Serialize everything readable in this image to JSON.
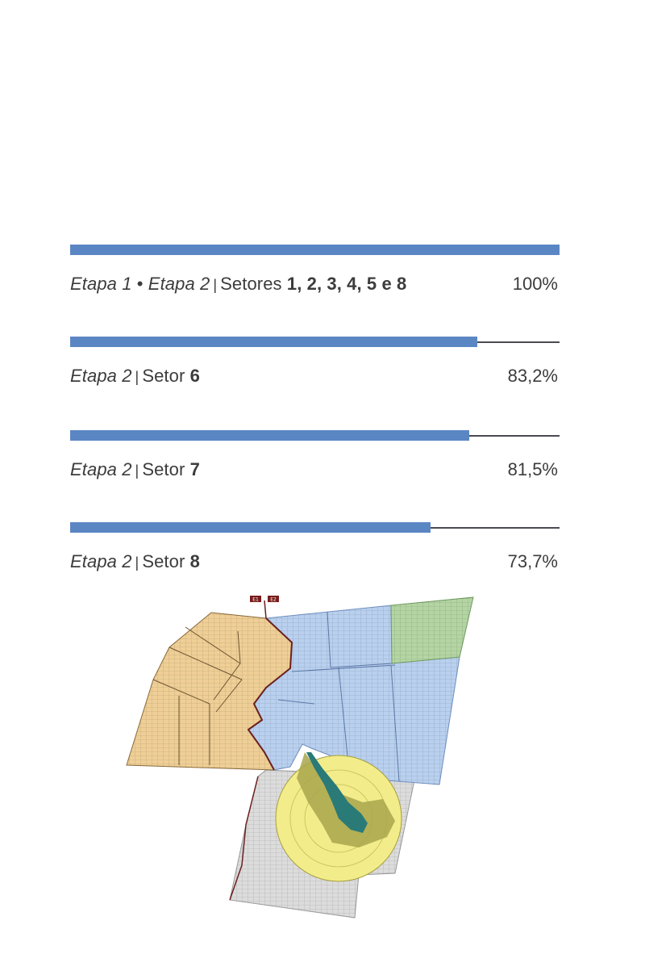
{
  "progress": [
    {
      "stage_a": "Etapa 1",
      "bullet": "•",
      "stage_b": "Etapa 2",
      "separator": "|",
      "sector_prefix": "Setores",
      "sectors": "1, 2, 3, 4, 5 e 8",
      "percent_text": "100%",
      "fraction": 1.0
    },
    {
      "stage_a": "",
      "bullet": "",
      "stage_b": "Etapa 2",
      "separator": "|",
      "sector_prefix": "Setor",
      "sectors": "6",
      "percent_text": "83,2%",
      "fraction": 0.832
    },
    {
      "stage_a": "",
      "bullet": "",
      "stage_b": "Etapa 2",
      "separator": "|",
      "sector_prefix": "Setor",
      "sectors": "7",
      "percent_text": "81,5%",
      "fraction": 0.815
    },
    {
      "stage_a": "",
      "bullet": "",
      "stage_b": "Etapa 2",
      "separator": "|",
      "sector_prefix": "Setor",
      "sectors": "8",
      "percent_text": "73,7%",
      "fraction": 0.737
    }
  ],
  "map": {
    "entrance_labels": [
      "E1",
      "E2"
    ],
    "colors": {
      "orange_zone": "#efcf96",
      "blue_zone": "#b9d0ef",
      "green_zone": "#b4d5a3",
      "yellow_zone": "#f3ec8a",
      "gray_zone": "#dcdcdc",
      "lake": "#2a7a78",
      "olive": "#a8a64c",
      "boundary": "#6b2020",
      "bar_fill": "#5b86c4"
    }
  }
}
